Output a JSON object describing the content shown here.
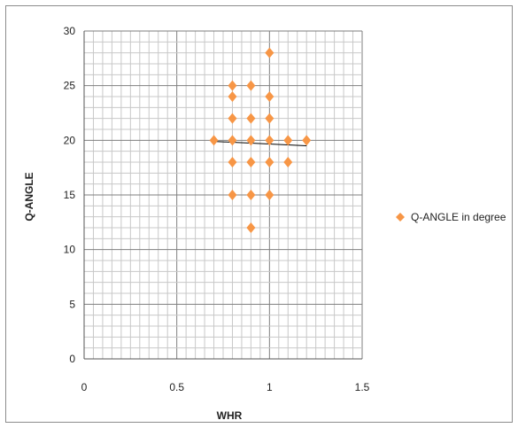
{
  "chart_data": {
    "type": "scatter",
    "title": "",
    "xlabel": "WHR",
    "ylabel": "Q-ANGLE",
    "xlim": [
      0,
      1.5
    ],
    "ylim": [
      0,
      30
    ],
    "xticks": [
      "0",
      "0.5",
      "1",
      "1.5"
    ],
    "yticks": [
      "0",
      "5",
      "10",
      "15",
      "20",
      "25",
      "30"
    ],
    "grid": true,
    "legend_position": "right",
    "series": [
      {
        "name": "Q-ANGLE in degree",
        "color": "#f79646",
        "marker": "diamond",
        "points": [
          {
            "x": 0.7,
            "y": 20
          },
          {
            "x": 0.8,
            "y": 25
          },
          {
            "x": 0.8,
            "y": 24
          },
          {
            "x": 0.8,
            "y": 22
          },
          {
            "x": 0.8,
            "y": 20
          },
          {
            "x": 0.8,
            "y": 18
          },
          {
            "x": 0.8,
            "y": 15
          },
          {
            "x": 0.9,
            "y": 25
          },
          {
            "x": 0.9,
            "y": 22
          },
          {
            "x": 0.9,
            "y": 20
          },
          {
            "x": 0.9,
            "y": 18
          },
          {
            "x": 0.9,
            "y": 15
          },
          {
            "x": 0.9,
            "y": 12
          },
          {
            "x": 1.0,
            "y": 28
          },
          {
            "x": 1.0,
            "y": 24
          },
          {
            "x": 1.0,
            "y": 22
          },
          {
            "x": 1.0,
            "y": 20
          },
          {
            "x": 1.0,
            "y": 18
          },
          {
            "x": 1.0,
            "y": 15
          },
          {
            "x": 1.1,
            "y": 20
          },
          {
            "x": 1.1,
            "y": 18
          },
          {
            "x": 1.2,
            "y": 20
          }
        ]
      }
    ],
    "trendline": {
      "type": "linear",
      "x": [
        0.7,
        1.2
      ],
      "y": [
        19.9,
        19.5
      ],
      "color": "#000000"
    }
  }
}
